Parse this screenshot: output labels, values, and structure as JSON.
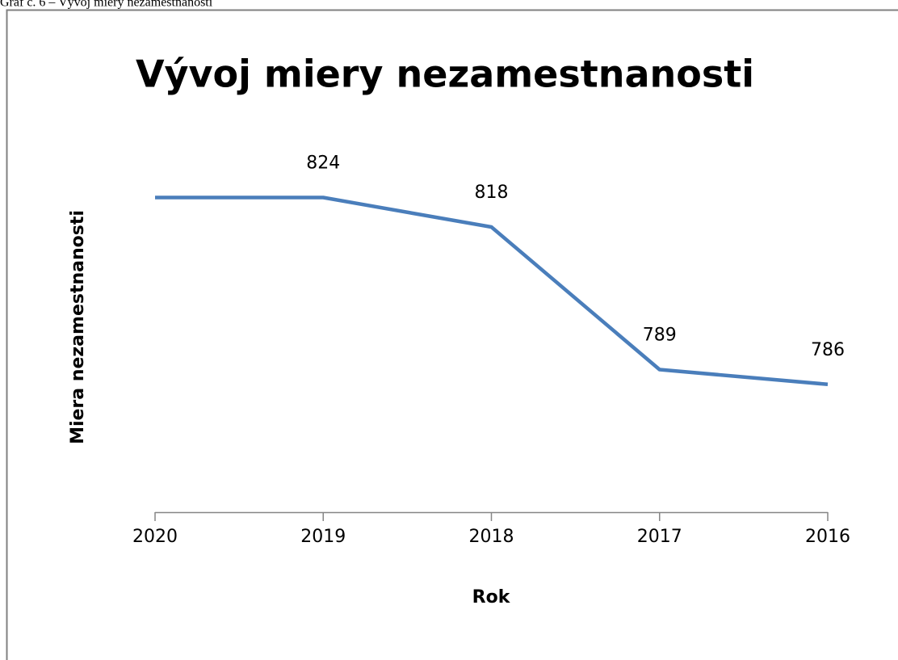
{
  "caption": "Graf č. 6 – Vývoj miery nezamestnanosti",
  "chart_data": {
    "type": "line",
    "title": "Vývoj miery nezamestnanosti",
    "x_label": "Rok",
    "y_label": "Miera nezamestnanosti",
    "categories": [
      "2020",
      "2019",
      "2018",
      "2017",
      "2016"
    ],
    "series": [
      {
        "name": "Miera nezamestnanosti",
        "color": "#4a7ebb",
        "values": [
          824,
          824,
          818,
          789,
          786
        ],
        "value_labels": [
          null,
          "824",
          "818",
          "789",
          "786"
        ]
      }
    ],
    "ylim": [
      760,
      830
    ]
  }
}
